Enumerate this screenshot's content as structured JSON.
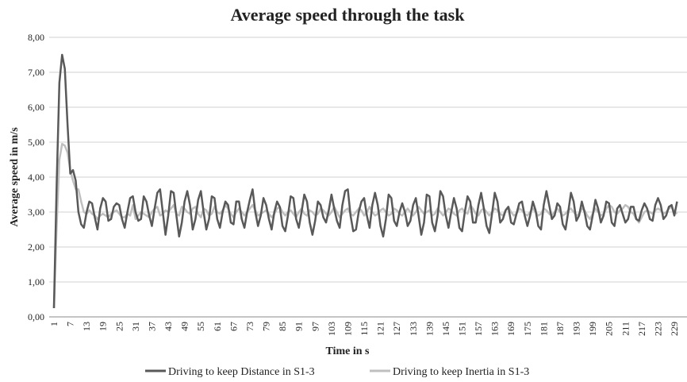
{
  "chart_data": {
    "type": "line",
    "title": "Average speed through the task",
    "x_label": "Time in s",
    "y_label": "Average speed in m/s",
    "categories": [
      1,
      null,
      null,
      null,
      null,
      null,
      7,
      null,
      null,
      null,
      null,
      null,
      13,
      null,
      null,
      null,
      null,
      null,
      19,
      null,
      null,
      null,
      null,
      null,
      25,
      null,
      null,
      null,
      null,
      null,
      31,
      null,
      null,
      null,
      null,
      null,
      37,
      null,
      null,
      null,
      null,
      null,
      43,
      null,
      null,
      null,
      null,
      null,
      49,
      null,
      null,
      null,
      null,
      null,
      55,
      null,
      null,
      null,
      null,
      null,
      61,
      null,
      null,
      null,
      null,
      null,
      67,
      null,
      null,
      null,
      null,
      null,
      73,
      null,
      null,
      null,
      null,
      null,
      79,
      null,
      null,
      null,
      null,
      null,
      85,
      null,
      null,
      null,
      null,
      null,
      91,
      null,
      null,
      null,
      null,
      null,
      97,
      null,
      null,
      null,
      null,
      null,
      103,
      null,
      null,
      null,
      null,
      null,
      109,
      null,
      null,
      null,
      null,
      null,
      115,
      null,
      null,
      null,
      null,
      null,
      121,
      null,
      null,
      null,
      null,
      null,
      127,
      null,
      null,
      null,
      null,
      null,
      133,
      null,
      null,
      null,
      null,
      null,
      139,
      null,
      null,
      null,
      null,
      null,
      145,
      null,
      null,
      null,
      null,
      null,
      151,
      null,
      null,
      null,
      null,
      null,
      157,
      null,
      null,
      null,
      null,
      null,
      163,
      null,
      null,
      null,
      null,
      null,
      169,
      null,
      null,
      null,
      null,
      null,
      175,
      null,
      null,
      null,
      null,
      null,
      181,
      null,
      null,
      null,
      null,
      null,
      187,
      null,
      null,
      null,
      null,
      null,
      193,
      null,
      null,
      null,
      null,
      null,
      199,
      null,
      null,
      null,
      null,
      null,
      205,
      null,
      null,
      null,
      null,
      null,
      211,
      null,
      null,
      null,
      null,
      null,
      217,
      null,
      null,
      null,
      null,
      null,
      223,
      null,
      null,
      null,
      null,
      null,
      229,
      null
    ],
    "series": [
      {
        "name": "Driving to keep Distance in S1-3",
        "color": "#595959",
        "values": [
          0.25,
          3.8,
          6.7,
          7.5,
          7.1,
          5.5,
          4.1,
          4.2,
          3.9,
          3.0,
          2.65,
          2.55,
          3.0,
          3.3,
          3.25,
          2.85,
          2.5,
          3.1,
          3.4,
          3.3,
          2.75,
          2.8,
          3.15,
          3.25,
          3.2,
          2.8,
          2.55,
          3.0,
          3.4,
          3.45,
          3.0,
          2.75,
          2.8,
          3.45,
          3.3,
          2.9,
          2.6,
          3.1,
          3.55,
          3.65,
          3.0,
          2.35,
          2.9,
          3.6,
          3.55,
          2.9,
          2.3,
          2.7,
          3.3,
          3.6,
          3.2,
          2.5,
          2.8,
          3.35,
          3.6,
          3.0,
          2.5,
          2.8,
          3.45,
          3.4,
          2.8,
          2.55,
          3.0,
          3.3,
          3.2,
          2.7,
          2.65,
          3.3,
          3.3,
          2.8,
          2.55,
          3.0,
          3.35,
          3.65,
          3.0,
          2.6,
          2.9,
          3.4,
          3.2,
          2.8,
          2.5,
          3.0,
          3.3,
          3.15,
          2.6,
          2.45,
          2.9,
          3.45,
          3.4,
          2.8,
          2.55,
          3.0,
          3.5,
          3.3,
          2.7,
          2.35,
          2.75,
          3.3,
          3.2,
          2.85,
          2.7,
          3.05,
          3.5,
          3.1,
          2.75,
          2.55,
          3.2,
          3.6,
          3.65,
          2.9,
          2.45,
          2.5,
          3.0,
          3.3,
          3.4,
          2.9,
          2.55,
          3.2,
          3.55,
          3.2,
          2.6,
          2.3,
          2.8,
          3.5,
          3.4,
          2.75,
          2.6,
          3.0,
          3.25,
          3.0,
          2.6,
          2.75,
          3.2,
          3.4,
          2.9,
          2.35,
          2.7,
          3.5,
          3.45,
          2.7,
          2.45,
          2.9,
          3.6,
          3.45,
          2.9,
          2.55,
          3.0,
          3.4,
          3.1,
          2.55,
          2.45,
          3.0,
          3.45,
          3.3,
          2.7,
          2.7,
          3.2,
          3.55,
          3.1,
          2.6,
          2.4,
          2.95,
          3.55,
          3.3,
          2.7,
          2.8,
          3.05,
          3.15,
          2.7,
          2.65,
          2.95,
          3.25,
          3.3,
          2.9,
          2.6,
          2.9,
          3.3,
          3.05,
          2.6,
          2.5,
          3.2,
          3.6,
          3.2,
          2.8,
          2.9,
          3.25,
          3.15,
          2.65,
          2.5,
          3.0,
          3.55,
          3.3,
          2.75,
          2.9,
          3.3,
          3.0,
          2.6,
          2.5,
          2.9,
          3.35,
          3.1,
          2.7,
          2.9,
          3.3,
          3.25,
          2.7,
          2.6,
          3.1,
          3.2,
          2.95,
          2.7,
          2.8,
          3.15,
          3.15,
          2.8,
          2.75,
          3.05,
          3.25,
          3.1,
          2.8,
          2.75,
          3.2,
          3.4,
          3.2,
          2.8,
          2.9,
          3.15,
          3.2,
          2.9,
          3.3
        ]
      },
      {
        "name": "Driving to keep Inertia in S1-3",
        "color": "#bfbfbf",
        "values": [
          0.25,
          2.6,
          4.5,
          4.95,
          4.9,
          4.7,
          4.2,
          3.9,
          3.65,
          3.65,
          3.3,
          3.0,
          2.95,
          3.05,
          2.95,
          2.9,
          2.8,
          2.9,
          2.95,
          2.9,
          2.85,
          2.95,
          3.0,
          3.05,
          2.95,
          2.85,
          2.85,
          2.95,
          2.9,
          3.2,
          2.8,
          2.9,
          3.0,
          2.95,
          2.9,
          2.85,
          3.0,
          3.1,
          3.15,
          2.9,
          2.95,
          3.05,
          3.0,
          3.1,
          3.2,
          2.95,
          2.9,
          3.15,
          3.1,
          3.0,
          2.95,
          3.1,
          3.15,
          2.95,
          2.85,
          3.1,
          3.05,
          2.9,
          2.95,
          3.15,
          3.0,
          2.95,
          3.05,
          3.2,
          3.1,
          2.95,
          2.85,
          3.0,
          3.1,
          3.0,
          2.9,
          3.0,
          3.1,
          3.2,
          3.05,
          2.9,
          2.95,
          3.0,
          3.05,
          2.95,
          2.85,
          2.95,
          3.1,
          3.15,
          3.0,
          2.9,
          3.0,
          3.05,
          2.95,
          2.85,
          3.0,
          3.1,
          2.95,
          2.9,
          3.05,
          3.0,
          2.9,
          2.95,
          3.1,
          3.05,
          2.95,
          2.9,
          3.0,
          3.15,
          3.0,
          2.85,
          2.95,
          3.05,
          3.1,
          2.95,
          2.9,
          3.0,
          3.1,
          3.05,
          2.9,
          3.0,
          3.15,
          3.0,
          2.9,
          2.95,
          3.05,
          3.1,
          3.0,
          2.9,
          2.95,
          3.1,
          3.05,
          2.95,
          2.9,
          3.0,
          3.1,
          3.0,
          2.9,
          3.0,
          3.15,
          3.05,
          2.95,
          3.0,
          3.05,
          2.9,
          2.95,
          3.1,
          3.0,
          2.9,
          3.0,
          3.1,
          3.05,
          2.95,
          2.9,
          3.05,
          3.1,
          3.0,
          2.95,
          3.2,
          3.1,
          2.95,
          2.9,
          3.05,
          3.1,
          3.0,
          2.9,
          3.0,
          3.1,
          3.05,
          2.95,
          2.9,
          3.05,
          3.15,
          3.0,
          2.9,
          2.95,
          3.1,
          3.05,
          2.95,
          2.9,
          3.0,
          3.1,
          3.0,
          2.9,
          2.95,
          3.1,
          3.05,
          2.95,
          2.9,
          3.0,
          3.1,
          3.0,
          2.9,
          2.95,
          3.05,
          3.1,
          3.0,
          2.9,
          2.95,
          3.1,
          3.05,
          2.9,
          2.8,
          2.95,
          3.1,
          3.0,
          2.9,
          2.95,
          3.1,
          3.2,
          3.15,
          3.0,
          2.95,
          3.05,
          3.1,
          3.2,
          3.15,
          3.0,
          2.95,
          2.8,
          2.7,
          2.85,
          3.0,
          3.05,
          3.0,
          2.95,
          3.05,
          3.1,
          3.05,
          2.95,
          3.0,
          3.1,
          3.15,
          3.0,
          2.95
        ]
      }
    ],
    "ylim": [
      0,
      8
    ],
    "yticks": [
      {
        "value": 0,
        "label": "0,00"
      },
      {
        "value": 1,
        "label": "1,00"
      },
      {
        "value": 2,
        "label": "2,00"
      },
      {
        "value": 3,
        "label": "3,00"
      },
      {
        "value": 4,
        "label": "4,00"
      },
      {
        "value": 5,
        "label": "5,00"
      },
      {
        "value": 6,
        "label": "6,00"
      },
      {
        "value": 7,
        "label": "7,00"
      },
      {
        "value": 8,
        "label": "8,00"
      }
    ],
    "grid": true,
    "legend": "bottom"
  }
}
